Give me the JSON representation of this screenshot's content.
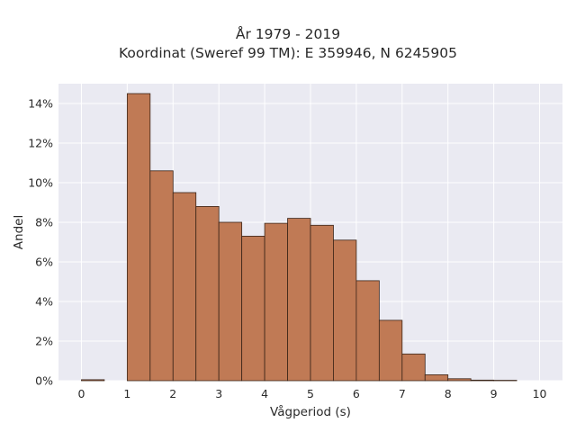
{
  "chart_data": {
    "type": "bar",
    "title": "År 1979 - 2019",
    "subtitle": "Koordinat (Sweref 99 TM): E 359946, N 6245905",
    "xlabel": "Vågperiod (s)",
    "ylabel": "Andel",
    "bin_width": 0.5,
    "bin_starts": [
      0,
      0.5,
      1,
      1.5,
      2,
      2.5,
      3,
      3.5,
      4,
      4.5,
      5,
      5.5,
      6,
      6.5,
      7,
      7.5,
      8,
      8.5,
      9,
      9.5
    ],
    "values": [
      0.05,
      0,
      14.5,
      10.6,
      9.5,
      8.8,
      8.0,
      7.3,
      7.95,
      8.2,
      7.85,
      7.1,
      5.05,
      3.05,
      1.35,
      0.3,
      0.1,
      0.03,
      0.02,
      0
    ],
    "xlim": [
      -0.5,
      10.5
    ],
    "ylim": [
      0,
      15
    ],
    "x_ticks": [
      0,
      1,
      2,
      3,
      4,
      5,
      6,
      7,
      8,
      9,
      10
    ],
    "y_ticks": [
      0,
      2,
      4,
      6,
      8,
      10,
      12,
      14
    ],
    "y_tick_labels": [
      "0%",
      "2%",
      "4%",
      "6%",
      "8%",
      "10%",
      "12%",
      "14%"
    ],
    "grid": true,
    "colors": {
      "bar_fill": "#c07a55",
      "bar_edge": "#3a2418",
      "plot_background": "#eaeaf2",
      "grid": "#ffffff"
    }
  }
}
